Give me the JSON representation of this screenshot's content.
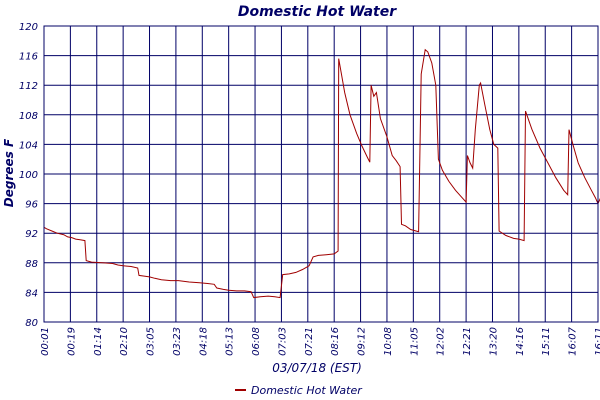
{
  "chart_data": {
    "type": "line",
    "title": "Domestic Hot Water",
    "ylabel": "Degrees F",
    "xlabel": "03/07/18 (EST)",
    "ylim": [
      80,
      120
    ],
    "yticks": [
      80,
      84,
      88,
      92,
      96,
      100,
      104,
      108,
      112,
      116,
      120
    ],
    "xticks": [
      "00:01",
      "00:19",
      "01:14",
      "02:10",
      "03:05",
      "03:23",
      "04:18",
      "05:13",
      "06:08",
      "07:03",
      "07:21",
      "08:16",
      "09:12",
      "10:08",
      "11:05",
      "12:02",
      "12:21",
      "13:20",
      "14:16",
      "15:11",
      "16:07",
      "16:11"
    ],
    "grid": true,
    "legend_position": "bottom",
    "series_color": "#a00000",
    "grid_color": "#000066",
    "title_color": "#000066",
    "series": [
      {
        "name": "Domestic Hot Water",
        "points": [
          [
            0.0,
            92.8
          ],
          [
            0.1,
            92.6
          ],
          [
            0.3,
            92.3
          ],
          [
            0.5,
            92.0
          ],
          [
            0.75,
            91.8
          ],
          [
            0.9,
            91.5
          ],
          [
            1.05,
            91.4
          ],
          [
            1.2,
            91.2
          ],
          [
            1.4,
            91.1
          ],
          [
            1.55,
            91.0
          ],
          [
            1.6,
            88.3
          ],
          [
            1.8,
            88.1
          ],
          [
            2.2,
            88.0
          ],
          [
            2.6,
            87.9
          ],
          [
            2.8,
            87.7
          ],
          [
            3.0,
            87.6
          ],
          [
            3.3,
            87.5
          ],
          [
            3.55,
            87.3
          ],
          [
            3.6,
            86.3
          ],
          [
            3.8,
            86.2
          ],
          [
            4.0,
            86.1
          ],
          [
            4.2,
            85.9
          ],
          [
            4.45,
            85.7
          ],
          [
            4.8,
            85.6
          ],
          [
            5.1,
            85.6
          ],
          [
            5.5,
            85.4
          ],
          [
            5.9,
            85.3
          ],
          [
            6.2,
            85.2
          ],
          [
            6.45,
            85.1
          ],
          [
            6.55,
            84.6
          ],
          [
            6.8,
            84.4
          ],
          [
            7.0,
            84.3
          ],
          [
            7.3,
            84.2
          ],
          [
            7.6,
            84.2
          ],
          [
            7.85,
            84.1
          ],
          [
            7.95,
            83.3
          ],
          [
            8.2,
            83.4
          ],
          [
            8.5,
            83.5
          ],
          [
            8.75,
            83.4
          ],
          [
            8.95,
            83.3
          ],
          [
            9.05,
            86.4
          ],
          [
            9.3,
            86.5
          ],
          [
            9.55,
            86.7
          ],
          [
            9.8,
            87.1
          ],
          [
            10.05,
            87.6
          ],
          [
            10.2,
            88.8
          ],
          [
            10.4,
            89.0
          ],
          [
            10.7,
            89.1
          ],
          [
            11.0,
            89.2
          ],
          [
            11.15,
            89.6
          ],
          [
            11.17,
            115.6
          ],
          [
            11.4,
            111.0
          ],
          [
            11.6,
            108.0
          ],
          [
            11.85,
            105.5
          ],
          [
            12.05,
            103.8
          ],
          [
            12.25,
            102.3
          ],
          [
            12.35,
            101.6
          ],
          [
            12.4,
            112.0
          ],
          [
            12.5,
            110.5
          ],
          [
            12.6,
            111.0
          ],
          [
            12.75,
            107.5
          ],
          [
            13.0,
            105.0
          ],
          [
            13.2,
            102.5
          ],
          [
            13.35,
            101.8
          ],
          [
            13.5,
            101.0
          ],
          [
            13.55,
            93.2
          ],
          [
            13.7,
            93.0
          ],
          [
            13.9,
            92.5
          ],
          [
            14.1,
            92.3
          ],
          [
            14.2,
            92.2
          ],
          [
            14.3,
            113.5
          ],
          [
            14.45,
            116.8
          ],
          [
            14.55,
            116.5
          ],
          [
            14.7,
            115.0
          ],
          [
            14.85,
            112.0
          ],
          [
            14.95,
            102.0
          ],
          [
            15.1,
            100.5
          ],
          [
            15.35,
            99.0
          ],
          [
            15.6,
            97.8
          ],
          [
            15.85,
            96.8
          ],
          [
            16.0,
            96.2
          ],
          [
            16.05,
            102.5
          ],
          [
            16.15,
            101.5
          ],
          [
            16.25,
            100.8
          ],
          [
            16.35,
            106.0
          ],
          [
            16.5,
            112.0
          ],
          [
            16.55,
            112.3
          ],
          [
            16.7,
            109.5
          ],
          [
            16.9,
            106.0
          ],
          [
            17.05,
            104.0
          ],
          [
            17.2,
            103.5
          ],
          [
            17.25,
            92.3
          ],
          [
            17.5,
            91.7
          ],
          [
            17.8,
            91.3
          ],
          [
            18.0,
            91.2
          ],
          [
            18.2,
            91.0
          ],
          [
            18.25,
            108.5
          ],
          [
            18.5,
            106.0
          ],
          [
            18.8,
            103.5
          ],
          [
            19.1,
            101.5
          ],
          [
            19.4,
            99.5
          ],
          [
            19.7,
            97.8
          ],
          [
            19.85,
            97.2
          ],
          [
            19.9,
            106.0
          ],
          [
            20.05,
            104.0
          ],
          [
            20.25,
            101.5
          ],
          [
            20.5,
            99.5
          ],
          [
            20.75,
            97.8
          ],
          [
            20.9,
            96.8
          ],
          [
            21.0,
            96.0
          ],
          [
            21.1,
            96.8
          ],
          [
            21.15,
            110.0
          ],
          [
            21.25,
            110.0
          ],
          [
            21.3,
            104.0
          ],
          [
            21.45,
            103.0
          ],
          [
            21.6,
            102.0
          ],
          [
            21.8,
            100.5
          ],
          [
            21.95,
            99.3
          ],
          [
            22.0,
            99.0
          ]
        ]
      }
    ]
  }
}
